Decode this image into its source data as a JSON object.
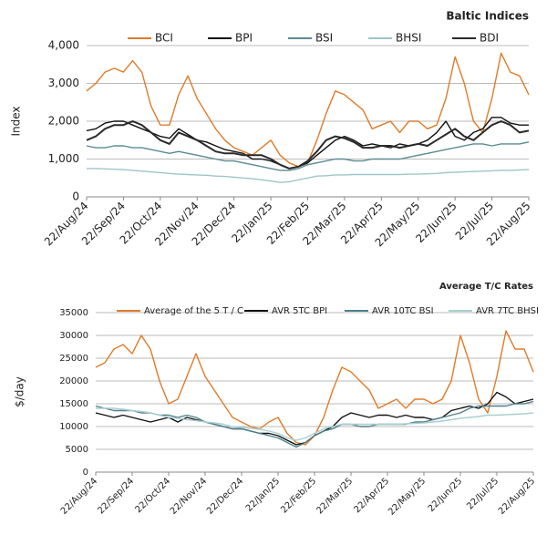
{
  "chart_data": [
    {
      "type": "line",
      "title": "Baltic Indices",
      "y_label": "Index",
      "categories": [
        "22/Aug/24",
        null,
        null,
        null,
        "22/Sep/24",
        null,
        null,
        null,
        "22/Oct/24",
        null,
        null,
        null,
        "22/Nov/24",
        null,
        null,
        null,
        "22/Dec/24",
        null,
        null,
        null,
        "22/Jan/25",
        null,
        null,
        null,
        "22/Feb/25",
        null,
        null,
        null,
        "22/Mar/25",
        null,
        null,
        null,
        "22/Apr/25",
        null,
        null,
        null,
        "22/May/25",
        null,
        null,
        null,
        "22/Jun/25",
        null,
        null,
        null,
        "22/Jul/25",
        null,
        null,
        null,
        "22/Aug/25"
      ],
      "ylim": [
        0,
        4000
      ],
      "yticks": [
        0,
        {
          "value": 1000,
          "label": "1,000"
        },
        {
          "value": 2000,
          "label": "2,000"
        },
        {
          "value": 3000,
          "label": "3,000"
        },
        {
          "value": 4000,
          "label": "4,000"
        }
      ],
      "grid": true,
      "series": [
        {
          "name": "BCI",
          "color": "#e07b28",
          "values": [
            2800,
            3000,
            3300,
            3400,
            3300,
            3600,
            3300,
            2400,
            1900,
            1900,
            2700,
            3200,
            2600,
            2200,
            1800,
            1500,
            1300,
            1200,
            1100,
            1300,
            1500,
            1100,
            900,
            800,
            900,
            1500,
            2200,
            2800,
            2700,
            2500,
            2300,
            1800,
            1900,
            2000,
            1700,
            2000,
            2000,
            1800,
            1900,
            2600,
            3700,
            3000,
            2000,
            1700,
            2600,
            3800,
            3300,
            3200,
            2700
          ]
        },
        {
          "name": "BPI",
          "color": "#111111",
          "values": [
            1750,
            1800,
            1950,
            2000,
            2000,
            1900,
            1800,
            1700,
            1600,
            1550,
            1800,
            1650,
            1500,
            1450,
            1350,
            1250,
            1200,
            1150,
            1000,
            1000,
            950,
            850,
            750,
            800,
            900,
            1100,
            1300,
            1500,
            1600,
            1500,
            1350,
            1400,
            1350,
            1300,
            1400,
            1350,
            1400,
            1500,
            1700,
            2000,
            1600,
            1500,
            1700,
            1800,
            2100,
            2100,
            1950,
            1900,
            1900
          ]
        },
        {
          "name": "BSI",
          "color": "#5b8a94",
          "values": [
            1350,
            1300,
            1300,
            1350,
            1350,
            1300,
            1300,
            1250,
            1200,
            1150,
            1200,
            1150,
            1100,
            1050,
            1000,
            950,
            950,
            900,
            850,
            800,
            750,
            700,
            700,
            750,
            850,
            900,
            950,
            1000,
            1000,
            950,
            950,
            1000,
            1000,
            1000,
            1000,
            1050,
            1100,
            1150,
            1200,
            1250,
            1300,
            1350,
            1400,
            1400,
            1350,
            1400,
            1400,
            1400,
            1450
          ]
        },
        {
          "name": "BHSI",
          "color": "#9fc5c8",
          "values": [
            750,
            750,
            740,
            730,
            720,
            700,
            680,
            660,
            640,
            620,
            600,
            590,
            580,
            570,
            550,
            540,
            520,
            500,
            480,
            450,
            420,
            380,
            400,
            450,
            500,
            550,
            560,
            580,
            580,
            590,
            590,
            590,
            590,
            590,
            590,
            600,
            600,
            610,
            620,
            640,
            650,
            660,
            670,
            680,
            690,
            700,
            700,
            710,
            720
          ]
        },
        {
          "name": "BDI",
          "color": "#2a2a2a",
          "values": [
            1500,
            1600,
            1800,
            1900,
            1900,
            2000,
            1900,
            1700,
            1500,
            1400,
            1700,
            1600,
            1500,
            1350,
            1200,
            1150,
            1150,
            1100,
            1100,
            1100,
            1000,
            850,
            750,
            800,
            950,
            1200,
            1500,
            1600,
            1550,
            1450,
            1300,
            1300,
            1350,
            1350,
            1300,
            1350,
            1400,
            1350,
            1500,
            1650,
            1800,
            1600,
            1500,
            1700,
            1900,
            2000,
            1900,
            1700,
            1750
          ]
        }
      ]
    },
    {
      "type": "line",
      "title": "Average T/C Rates",
      "y_label": "$/day",
      "categories": [
        "22/Aug/24",
        null,
        null,
        null,
        "22/Sep/24",
        null,
        null,
        null,
        "22/Oct/24",
        null,
        null,
        null,
        "22/Nov/24",
        null,
        null,
        null,
        "22/Dec/24",
        null,
        null,
        null,
        "22/Jan/25",
        null,
        null,
        null,
        "22/Feb/25",
        null,
        null,
        null,
        "22/Mar/25",
        null,
        null,
        null,
        "22/Apr/25",
        null,
        null,
        null,
        "22/May/25",
        null,
        null,
        null,
        "22/Jun/25",
        null,
        null,
        null,
        "22/Jul/25",
        null,
        null,
        null,
        "22/Aug/25"
      ],
      "ylim": [
        0,
        35000
      ],
      "yticks": [
        0,
        5000,
        10000,
        15000,
        20000,
        25000,
        30000,
        35000
      ],
      "grid": true,
      "series": [
        {
          "name": "Average of the 5 T / C",
          "color": "#e07b28",
          "values": [
            23000,
            24000,
            27000,
            28000,
            26000,
            30000,
            27000,
            20000,
            15000,
            16000,
            21000,
            26000,
            21000,
            18000,
            15000,
            12000,
            11000,
            10000,
            9500,
            11000,
            12000,
            8500,
            6500,
            6000,
            8000,
            12000,
            18000,
            23000,
            22000,
            20000,
            18000,
            14000,
            15000,
            16000,
            14000,
            16000,
            16000,
            15000,
            16000,
            20000,
            30000,
            24000,
            16000,
            13000,
            21000,
            31000,
            27000,
            27000,
            22000
          ]
        },
        {
          "name": "AVR 5TC BPI",
          "color": "#111111",
          "values": [
            13000,
            12500,
            12000,
            12500,
            12000,
            11500,
            11000,
            11500,
            12000,
            11000,
            12000,
            11500,
            11000,
            10500,
            10000,
            9500,
            9500,
            9000,
            8500,
            8500,
            8000,
            7000,
            6000,
            6500,
            8000,
            9000,
            10000,
            12000,
            13000,
            12500,
            12000,
            12500,
            12500,
            12000,
            12500,
            12000,
            12000,
            11500,
            12000,
            13500,
            14000,
            14500,
            14000,
            15000,
            17500,
            16500,
            15000,
            15500,
            16000
          ]
        },
        {
          "name": "AVR 10TC BSI",
          "color": "#4f7f8a",
          "values": [
            14500,
            14000,
            13500,
            13500,
            13500,
            13000,
            13000,
            12500,
            12500,
            12000,
            12500,
            12000,
            11000,
            10500,
            10000,
            9500,
            9500,
            9000,
            8500,
            8000,
            7500,
            6500,
            5500,
            6500,
            8000,
            9000,
            9500,
            10500,
            10500,
            10000,
            10000,
            10500,
            10500,
            10500,
            10500,
            11000,
            11000,
            11500,
            12000,
            12500,
            13000,
            14000,
            14500,
            14500,
            14500,
            14500,
            15000,
            15000,
            15500
          ]
        },
        {
          "name": "AVR 7TC BHSI",
          "color": "#a8cfcf",
          "values": [
            14000,
            14000,
            14000,
            13800,
            13500,
            13300,
            13000,
            12500,
            12000,
            11800,
            11500,
            11300,
            11000,
            10800,
            10500,
            10000,
            9800,
            9600,
            9400,
            9000,
            8500,
            7500,
            7000,
            7500,
            8500,
            9500,
            10000,
            10500,
            10500,
            10500,
            10500,
            10500,
            10500,
            10500,
            10600,
            10700,
            10800,
            11000,
            11200,
            11500,
            11800,
            12000,
            12200,
            12500,
            12500,
            12600,
            12700,
            12800,
            13000
          ]
        }
      ]
    }
  ]
}
